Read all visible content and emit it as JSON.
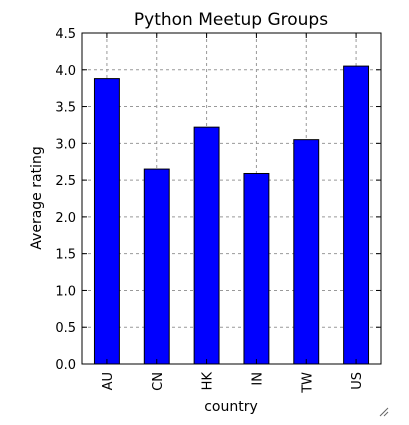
{
  "chart_data": {
    "type": "bar",
    "title": "Python Meetup Groups",
    "xlabel": "country",
    "ylabel": "Average rating",
    "categories": [
      "AU",
      "CN",
      "HK",
      "IN",
      "TW",
      "US"
    ],
    "values": [
      3.88,
      2.65,
      3.22,
      2.59,
      3.05,
      4.05
    ],
    "ylim": [
      0,
      4.5
    ],
    "yticks": [
      "0.0",
      "0.5",
      "1.0",
      "1.5",
      "2.0",
      "2.5",
      "3.0",
      "3.5",
      "4.0",
      "4.5"
    ],
    "grid": true,
    "bar_color": "#0000ff"
  }
}
